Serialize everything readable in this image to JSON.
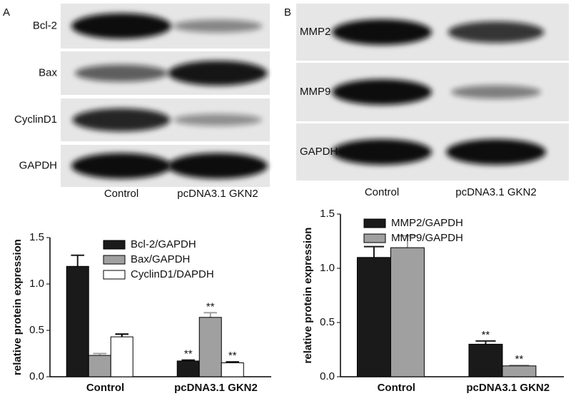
{
  "panels": [
    {
      "label": "A",
      "blots": [
        "Bcl-2",
        "Bax",
        "CyclinD1",
        "GAPDH"
      ],
      "lanes": [
        "Control",
        "pcDNA3.1  GKN2"
      ]
    },
    {
      "label": "B",
      "blots": [
        "MMP2",
        "MMP9",
        "GAPDH"
      ],
      "lanes": [
        "Control",
        "pcDNA3.1 GKN2"
      ]
    }
  ],
  "chart_data": [
    {
      "type": "bar",
      "ylabel": "relative protein expression",
      "categories": [
        "Control",
        "pcDNA3.1 GKN2"
      ],
      "ylim": [
        0,
        1.5
      ],
      "yticks": [
        {
          "value": 0,
          "label": "0.0"
        },
        0.5,
        {
          "value": 1,
          "label": "1.0"
        },
        1.5
      ],
      "legend": "top",
      "series": [
        {
          "name": "Bcl-2/GAPDH",
          "color": "#1a1a1a",
          "values": [
            1.19,
            0.17
          ],
          "errors": [
            0.12,
            0.01
          ],
          "significance": [
            null,
            "**"
          ]
        },
        {
          "name": "Bax/GAPDH",
          "color": "#a0a0a0",
          "values": [
            0.23,
            0.64
          ],
          "errors": [
            0.02,
            0.05
          ],
          "significance": [
            null,
            "**"
          ]
        },
        {
          "name": "CyclinD1/DAPDH",
          "color": "#ffffff",
          "values": [
            0.43,
            0.15
          ],
          "errors": [
            0.03,
            0.01
          ],
          "significance": [
            null,
            "**"
          ]
        }
      ]
    },
    {
      "type": "bar",
      "ylabel": "relative protein expression",
      "categories": [
        "Control",
        "pcDNA3.1 GKN2"
      ],
      "ylim": [
        0,
        1.5
      ],
      "yticks": [
        {
          "value": 0,
          "label": "0.0"
        },
        0.5,
        {
          "value": 1,
          "label": "1.0"
        },
        1.5
      ],
      "legend": "top",
      "series": [
        {
          "name": "MMP2/GAPDH",
          "color": "#1a1a1a",
          "values": [
            1.1,
            0.3
          ],
          "errors": [
            0.1,
            0.03
          ],
          "significance": [
            null,
            "**"
          ]
        },
        {
          "name": "MMP9/GAPDH",
          "color": "#a0a0a0",
          "values": [
            1.19,
            0.1
          ],
          "errors": [
            0.11,
            0.005
          ],
          "significance": [
            null,
            "**"
          ]
        }
      ]
    }
  ]
}
